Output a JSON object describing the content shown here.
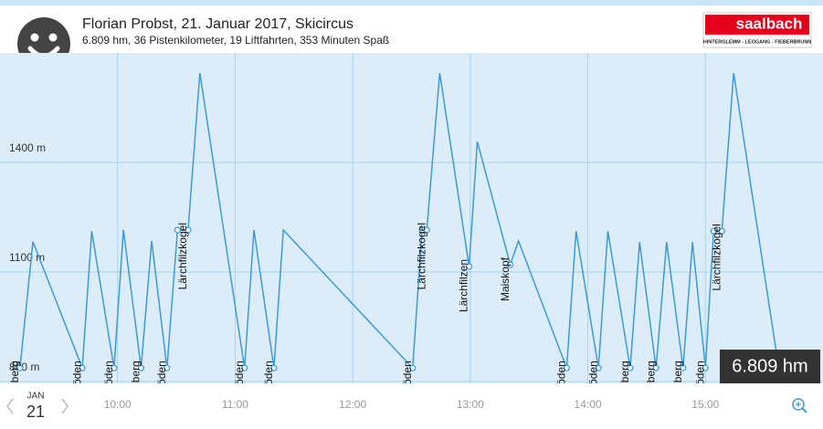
{
  "header": {
    "title": "Florian Probst, 21. Januar 2017, Skicircus",
    "subtitle": "6.809 hm, 36 Pistenkilometer, 19 Liftfahrten, 353 Minuten Spaß",
    "logo": {
      "name": "saalbach",
      "places": "HINTERGLEMM - LEOGANG - FIEBERBRUNN"
    }
  },
  "date": {
    "month": "JAN",
    "day": "21"
  },
  "badge": "6.809 hm",
  "chart_data": {
    "type": "line",
    "color": "#3d9ad6",
    "grid": true,
    "x": [
      9.17,
      9.28,
      9.7,
      9.78,
      9.97,
      10.05,
      10.2,
      10.29,
      10.42,
      10.51,
      10.6,
      10.7,
      11.08,
      11.16,
      11.33,
      11.41,
      12.51,
      12.59,
      12.63,
      12.74,
      12.99,
      13.06,
      13.34,
      13.41,
      13.82,
      13.9,
      14.09,
      14.17,
      14.36,
      14.44,
      14.58,
      14.67,
      14.81,
      14.89,
      15.0,
      15.07,
      15.14,
      15.24,
      15.6
    ],
    "values": [
      837,
      1183,
      837,
      1212,
      837,
      1215,
      837,
      1185,
      837,
      1215,
      1215,
      1645,
      837,
      1215,
      837,
      1215,
      837,
      1215,
      1215,
      1645,
      1115,
      1457,
      1120,
      1185,
      837,
      1212,
      837,
      1212,
      837,
      1182,
      837,
      1182,
      837,
      1182,
      837,
      1212,
      1212,
      1645,
      887
    ],
    "xlim": [
      9,
      16
    ],
    "ylim": [
      800,
      1700
    ],
    "xticks": [
      {
        "value": 10,
        "label": "10:00"
      },
      {
        "value": 11,
        "label": "11:00"
      },
      {
        "value": 12,
        "label": "12:00"
      },
      {
        "value": 13,
        "label": "13:00"
      },
      {
        "value": 14,
        "label": "14:00"
      },
      {
        "value": 15,
        "label": "15:00"
      }
    ],
    "yticks": [
      {
        "value": 800,
        "label": "800 m"
      },
      {
        "value": 1100,
        "label": "1100 m"
      },
      {
        "value": 1400,
        "label": "1400 m"
      }
    ],
    "annotations": [
      {
        "text": "Dolschberg",
        "x": [
          9.17
        ],
        "y": 837
      },
      {
        "text": "Streuböden",
        "x": [
          9.7
        ],
        "y": 837
      },
      {
        "text": "Streuböden",
        "x": [
          9.97
        ],
        "y": 837
      },
      {
        "text": "Dolschberg",
        "x": [
          10.2
        ],
        "y": 837
      },
      {
        "text": "Streuböden",
        "x": [
          10.42
        ],
        "y": 837
      },
      {
        "text": "Lärchfilzkogel",
        "x": [
          10.51,
          10.6
        ],
        "y": 1215
      },
      {
        "text": "Streuböden",
        "x": [
          11.08
        ],
        "y": 837
      },
      {
        "text": "Streuböden",
        "x": [
          11.33
        ],
        "y": 837
      },
      {
        "text": "Streuböden",
        "x": [
          12.51
        ],
        "y": 837
      },
      {
        "text": "Lärchfilzkogel",
        "x": [
          12.59,
          12.63
        ],
        "y": 1215
      },
      {
        "text": "Lärchfilzen",
        "x": [
          12.99
        ],
        "y": 1115
      },
      {
        "text": "Maiskopf",
        "x": [
          13.34
        ],
        "y": 1120
      },
      {
        "text": "Streuböden",
        "x": [
          13.82
        ],
        "y": 837
      },
      {
        "text": "Streuböden",
        "x": [
          14.09
        ],
        "y": 837
      },
      {
        "text": "Dolschberg",
        "x": [
          14.36
        ],
        "y": 837
      },
      {
        "text": "Dolschberg",
        "x": [
          14.58
        ],
        "y": 837
      },
      {
        "text": "Dolschberg",
        "x": [
          14.81
        ],
        "y": 837
      },
      {
        "text": "Streuböden",
        "x": [
          15.0
        ],
        "y": 837
      },
      {
        "text": "Lärchfilzkogel",
        "x": [
          15.07,
          15.14
        ],
        "y": 1212
      }
    ]
  }
}
